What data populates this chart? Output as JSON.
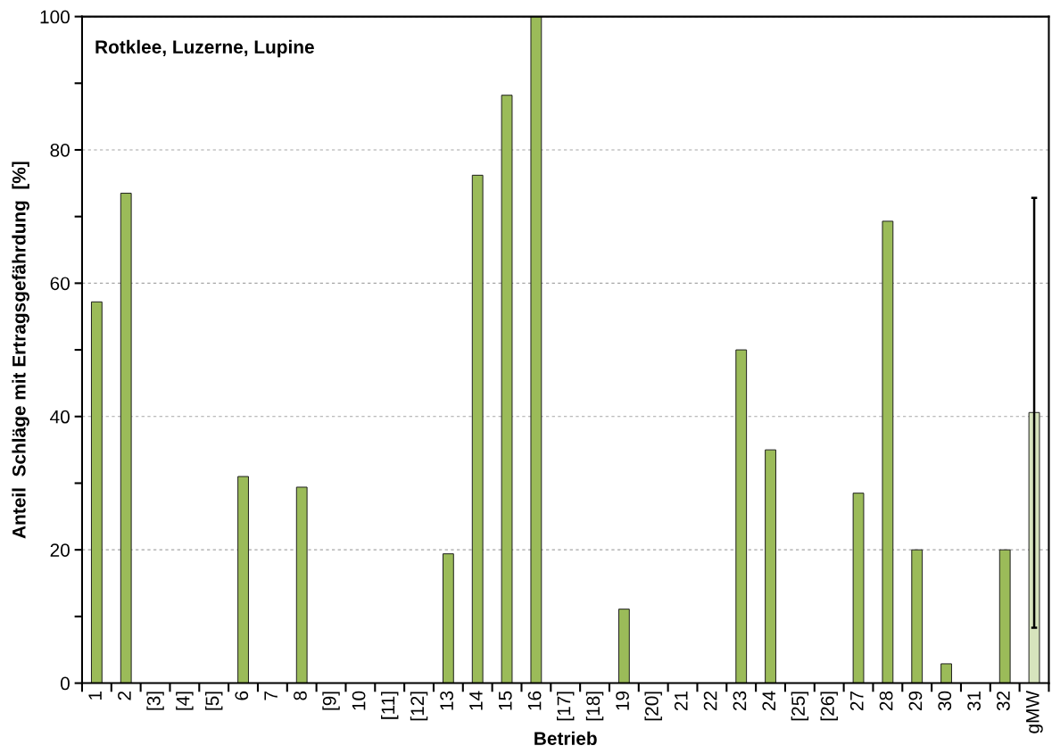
{
  "chart_data": {
    "type": "bar",
    "title": "Rotklee, Luzerne, Lupine",
    "xlabel": "Betrieb",
    "ylabel": "Anteil  Schläge mit Ertragsgefährdung  [%]",
    "categories": [
      "1",
      "2",
      "[3]",
      "[4]",
      "[5]",
      "6",
      "7",
      "8",
      "[9]",
      "10",
      "[11]",
      "[12]",
      "13",
      "14",
      "15",
      "16",
      "[17]",
      "[18]",
      "19",
      "[20]",
      "21",
      "22",
      "23",
      "24",
      "[25]",
      "[26]",
      "27",
      "28",
      "29",
      "30",
      "31",
      "32",
      "gMW"
    ],
    "values": [
      57.2,
      73.5,
      null,
      null,
      null,
      31.0,
      null,
      29.4,
      null,
      null,
      null,
      null,
      19.4,
      76.2,
      88.2,
      100,
      null,
      null,
      11.1,
      null,
      null,
      null,
      50.0,
      35.0,
      null,
      null,
      28.5,
      69.3,
      20.0,
      2.9,
      null,
      20.0,
      40.6
    ],
    "colors": [
      "#9bbb59",
      "#9bbb59",
      "#9bbb59",
      "#9bbb59",
      "#9bbb59",
      "#9bbb59",
      "#9bbb59",
      "#9bbb59",
      "#9bbb59",
      "#9bbb59",
      "#9bbb59",
      "#9bbb59",
      "#9bbb59",
      "#9bbb59",
      "#9bbb59",
      "#9bbb59",
      "#9bbb59",
      "#9bbb59",
      "#9bbb59",
      "#9bbb59",
      "#9bbb59",
      "#9bbb59",
      "#9bbb59",
      "#9bbb59",
      "#9bbb59",
      "#9bbb59",
      "#9bbb59",
      "#9bbb59",
      "#9bbb59",
      "#9bbb59",
      "#9bbb59",
      "#9bbb59",
      "#d7e4bd"
    ],
    "errors": [
      null,
      null,
      null,
      null,
      null,
      null,
      null,
      null,
      null,
      null,
      null,
      null,
      null,
      null,
      null,
      null,
      null,
      null,
      null,
      null,
      null,
      null,
      null,
      null,
      null,
      null,
      null,
      null,
      null,
      null,
      null,
      null,
      [
        8.3,
        72.8
      ]
    ],
    "ylim": [
      0,
      100
    ],
    "yticks": [
      0,
      {
        "value": 10,
        "label": null
      },
      20,
      {
        "value": 30,
        "label": null
      },
      40,
      {
        "value": 50,
        "label": null
      },
      60,
      {
        "value": 70,
        "label": null
      },
      80,
      {
        "value": 90,
        "label": null
      },
      100
    ],
    "grid": "y"
  }
}
